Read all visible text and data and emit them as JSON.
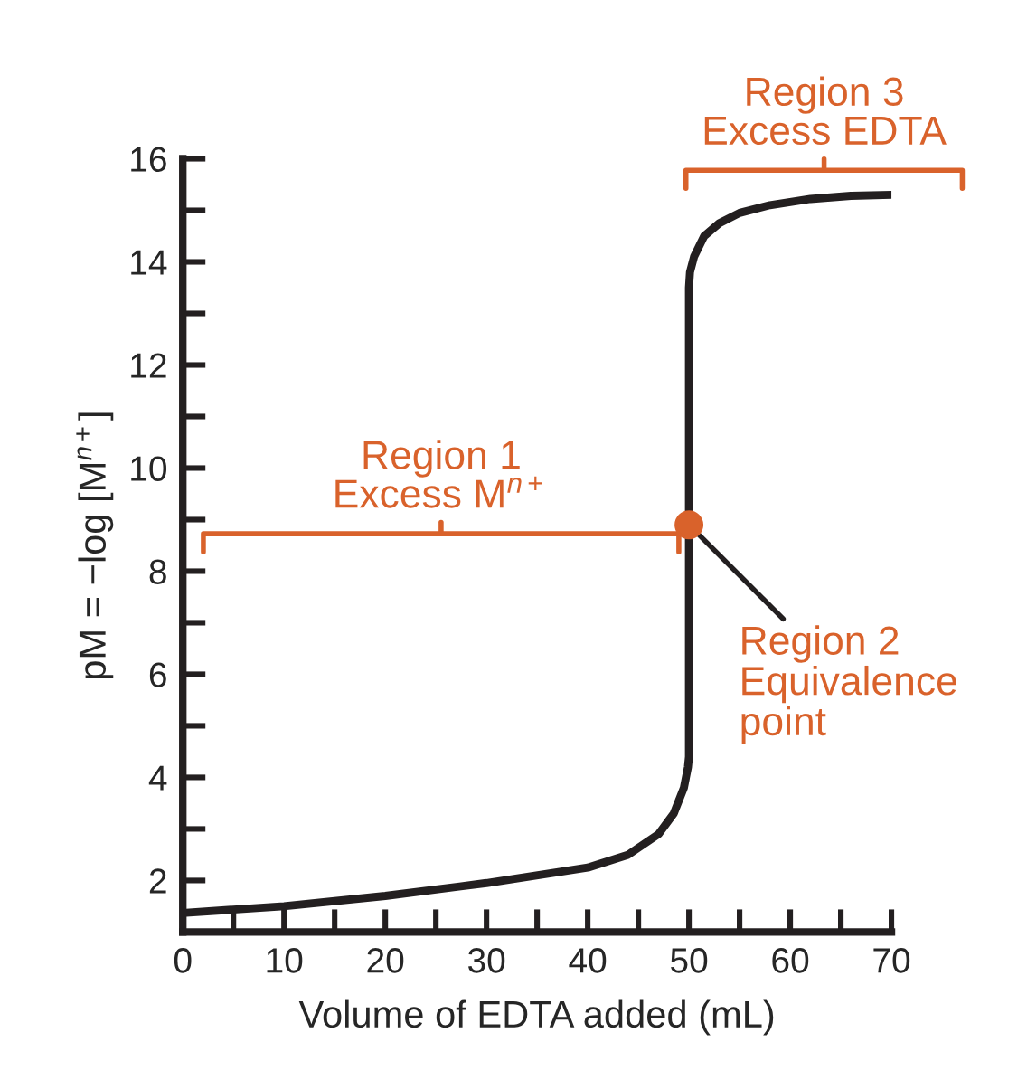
{
  "chart_data": {
    "type": "line",
    "xlabel": "Volume of EDTA added (mL)",
    "ylabel": "pM = −log [M$^{n+}$]",
    "xlim": [
      0,
      70
    ],
    "ylim": [
      1,
      16
    ],
    "xticks": [
      0,
      {
        "value": 5,
        "label": null
      },
      10,
      {
        "value": 15,
        "label": null
      },
      20,
      {
        "value": 25,
        "label": null
      },
      30,
      {
        "value": 35,
        "label": null
      },
      40,
      {
        "value": 45,
        "label": null
      },
      50,
      {
        "value": 55,
        "label": null
      },
      60,
      {
        "value": 65,
        "label": null
      },
      70
    ],
    "yticks": [
      2,
      {
        "value": 3,
        "label": null
      },
      4,
      {
        "value": 5,
        "label": null
      },
      6,
      {
        "value": 7,
        "label": null
      },
      8,
      {
        "value": 9,
        "label": null
      },
      10,
      {
        "value": 11,
        "label": null
      },
      12,
      {
        "value": 13,
        "label": null
      },
      14,
      {
        "value": 15,
        "label": null
      },
      16
    ],
    "series": [
      {
        "color": "#231f20",
        "x": [
          0,
          10,
          20,
          30,
          40,
          44,
          47,
          48.5,
          49.5,
          49.9,
          50,
          50,
          50.1,
          50.5,
          51.5,
          53,
          55,
          58,
          62,
          66,
          70
        ],
        "values": [
          1.37,
          1.5,
          1.7,
          1.95,
          2.25,
          2.5,
          2.9,
          3.3,
          3.8,
          4.2,
          4.4,
          13.5,
          13.8,
          14.1,
          14.5,
          14.75,
          14.95,
          15.1,
          15.22,
          15.28,
          15.3
        ]
      },
      {
        "type": "scatter",
        "color": "#d9622b",
        "x": [
          50
        ],
        "values": [
          8.9
        ]
      }
    ],
    "annotations": [
      {
        "text": "Region 2\nEquivalence\npoint",
        "x": 50,
        "y": 8.9
      },
      "Region 1\nExcess M$^{n+}$",
      "Region 3\nExcess EDTA"
    ],
    "grid": false,
    "legend": false,
    "line_style": "solid"
  }
}
